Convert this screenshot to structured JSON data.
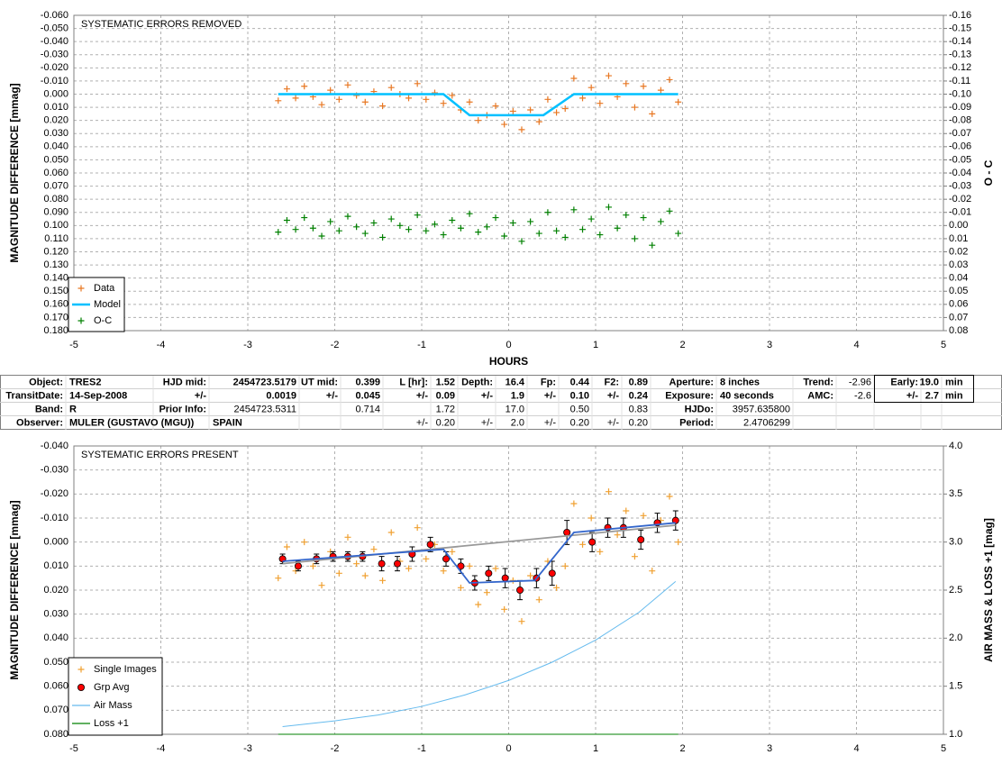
{
  "chart_data": [
    {
      "type": "scatter",
      "annotation": "SYSTEMATIC ERRORS REMOVED",
      "xlabel": "HOURS",
      "ylabel": "MAGNITUDE DIFFERENCE [mmag]",
      "y2label": "O - C",
      "xlim": [
        -5,
        5
      ],
      "xticks": [
        -5,
        -4,
        -3,
        -2,
        -1,
        0,
        1,
        2,
        3,
        4,
        5
      ],
      "ylim": [
        -0.06,
        0.18
      ],
      "y_reversed": true,
      "yticks": [
        {
          "value": -0.06,
          "label": "-0.060"
        },
        {
          "value": -0.05,
          "label": "-0.050"
        },
        {
          "value": -0.04,
          "label": "-0.040"
        },
        {
          "value": -0.03,
          "label": "-0.030"
        },
        {
          "value": -0.02,
          "label": "-0.020"
        },
        {
          "value": -0.01,
          "label": "-0.010"
        },
        {
          "value": 0,
          "label": "0.000"
        },
        {
          "value": 0.01,
          "label": "0.010"
        },
        {
          "value": 0.02,
          "label": "0.020"
        },
        {
          "value": 0.03,
          "label": "0.030"
        },
        {
          "value": 0.04,
          "label": "0.040"
        },
        {
          "value": 0.05,
          "label": "0.050"
        },
        {
          "value": 0.06,
          "label": "0.060"
        },
        {
          "value": 0.07,
          "label": "0.070"
        },
        {
          "value": 0.08,
          "label": "0.080"
        },
        {
          "value": 0.09,
          "label": "0.090"
        },
        {
          "value": 0.1,
          "label": "0.100"
        },
        {
          "value": 0.11,
          "label": "0.110"
        },
        {
          "value": 0.12,
          "label": "0.120"
        },
        {
          "value": 0.13,
          "label": "0.130"
        },
        {
          "value": 0.14,
          "label": "0.140"
        },
        {
          "value": 0.15,
          "label": "0.150"
        },
        {
          "value": 0.16,
          "label": "0.160"
        },
        {
          "value": 0.17,
          "label": "0.170"
        },
        {
          "value": 0.18,
          "label": "0.180"
        }
      ],
      "y2lim": [
        -0.16,
        0.08
      ],
      "y2_reversed": true,
      "y2ticks": [
        -0.16,
        -0.15,
        -0.14,
        -0.13,
        -0.12,
        -0.11,
        {
          "value": -0.1,
          "label": "-0.10"
        },
        -0.09,
        -0.08,
        -0.07,
        -0.06,
        -0.05,
        -0.04,
        -0.03,
        -0.02,
        -0.01,
        {
          "value": 0,
          "label": "0.00"
        },
        0.01,
        0.02,
        0.03,
        0.04,
        0.05,
        0.06,
        0.07,
        0.08
      ],
      "grid": true,
      "legend": "lower left",
      "x": [
        -2.65,
        -2.55,
        -2.45,
        -2.35,
        -2.25,
        -2.15,
        -2.05,
        -1.95,
        -1.85,
        -1.75,
        -1.65,
        -1.55,
        -1.45,
        -1.35,
        -1.25,
        -1.15,
        -1.05,
        -0.95,
        -0.85,
        -0.75,
        -0.65,
        -0.55,
        -0.45,
        -0.35,
        -0.25,
        -0.15,
        -0.05,
        0.05,
        0.15,
        0.25,
        0.35,
        0.45,
        0.55,
        0.65,
        0.75,
        0.85,
        0.95,
        1.05,
        1.15,
        1.25,
        1.35,
        1.45,
        1.55,
        1.65,
        1.75,
        1.85,
        1.95
      ],
      "series": [
        {
          "name": "Data",
          "type": "scatter",
          "marker": "plus",
          "color": "#e87722",
          "values": [
            0.005,
            -0.004,
            0.003,
            -0.006,
            0.002,
            0.008,
            -0.003,
            0.004,
            -0.007,
            0.001,
            0.006,
            -0.002,
            0.009,
            -0.005,
            0.0,
            0.003,
            -0.008,
            0.004,
            -0.001,
            0.007,
            0.001,
            0.012,
            0.006,
            0.02,
            0.016,
            0.009,
            0.023,
            0.013,
            0.027,
            0.012,
            0.021,
            0.004,
            0.014,
            0.011,
            -0.012,
            0.003,
            -0.005,
            0.007,
            -0.014,
            0.002,
            -0.008,
            0.01,
            -0.006,
            0.015,
            -0.003,
            -0.011,
            0.006
          ]
        },
        {
          "name": "Model",
          "type": "line",
          "color": "#00c0ff",
          "x": [
            -2.65,
            -0.75,
            -0.45,
            0.4,
            0.75,
            1.95
          ],
          "values": [
            0,
            0,
            0.016,
            0.016,
            0,
            0
          ]
        },
        {
          "name": "O-C",
          "type": "scatter",
          "marker": "plus",
          "color": "#008000",
          "axis": "y2",
          "values": [
            0.005,
            -0.004,
            0.003,
            -0.006,
            0.002,
            0.008,
            -0.003,
            0.004,
            -0.007,
            0.001,
            0.006,
            -0.002,
            0.009,
            -0.005,
            0.0,
            0.003,
            -0.008,
            0.004,
            -0.001,
            0.007,
            -0.004,
            0.002,
            -0.009,
            0.005,
            0.001,
            -0.006,
            0.008,
            -0.002,
            0.012,
            -0.003,
            0.006,
            -0.01,
            0.004,
            0.009,
            -0.012,
            0.003,
            -0.005,
            0.007,
            -0.014,
            0.002,
            -0.008,
            0.01,
            -0.006,
            0.015,
            -0.003,
            -0.011,
            0.006
          ]
        }
      ]
    },
    {
      "type": "scatter",
      "annotation": "SYSTEMATIC ERRORS PRESENT",
      "ylabel": "MAGNITUDE DIFFERENCE [mmag]",
      "y2label": "AIR MASS & LOSS +1 [mag]",
      "xlim": [
        -5,
        5
      ],
      "xticks": [
        -5,
        -4,
        -3,
        -2,
        -1,
        0,
        1,
        2,
        3,
        4,
        5
      ],
      "ylim": [
        -0.04,
        0.08
      ],
      "y_reversed": true,
      "yticks": [
        {
          "value": -0.04,
          "label": "-0.040"
        },
        {
          "value": -0.03,
          "label": "-0.030"
        },
        {
          "value": -0.02,
          "label": "-0.020"
        },
        {
          "value": -0.01,
          "label": "-0.010"
        },
        {
          "value": 0,
          "label": "0.000"
        },
        {
          "value": 0.01,
          "label": "0.010"
        },
        {
          "value": 0.02,
          "label": "0.020"
        },
        {
          "value": 0.03,
          "label": "0.030"
        },
        {
          "value": 0.04,
          "label": "0.040"
        },
        {
          "value": 0.05,
          "label": "0.050"
        },
        {
          "value": 0.06,
          "label": "0.060"
        },
        {
          "value": 0.07,
          "label": "0.070"
        },
        {
          "value": 0.08,
          "label": "0.080"
        }
      ],
      "y2lim": [
        1,
        4
      ],
      "y2ticks": [
        {
          "value": 1,
          "label": "1.0"
        },
        1.5,
        {
          "value": 2,
          "label": "2.0"
        },
        2.5,
        {
          "value": 3,
          "label": "3.0"
        },
        3.5,
        {
          "value": 4,
          "label": "4.0"
        }
      ],
      "grid": true,
      "legend": "lower left",
      "x": [
        -2.65,
        -2.55,
        -2.45,
        -2.35,
        -2.25,
        -2.15,
        -2.05,
        -1.95,
        -1.85,
        -1.75,
        -1.65,
        -1.55,
        -1.45,
        -1.35,
        -1.25,
        -1.15,
        -1.05,
        -0.95,
        -0.85,
        -0.75,
        -0.65,
        -0.55,
        -0.45,
        -0.35,
        -0.25,
        -0.15,
        -0.05,
        0.05,
        0.15,
        0.25,
        0.35,
        0.45,
        0.55,
        0.65,
        0.75,
        0.85,
        0.95,
        1.05,
        1.15,
        1.25,
        1.35,
        1.45,
        1.55,
        1.65,
        1.75,
        1.85,
        1.95
      ],
      "series": [
        {
          "name": "Single Images",
          "type": "scatter",
          "marker": "plus",
          "color": "#f0a030",
          "values": [
            0.015,
            0.002,
            0.012,
            0.0,
            0.01,
            0.018,
            0.004,
            0.013,
            -0.002,
            0.009,
            0.014,
            0.003,
            0.016,
            -0.004,
            0.008,
            0.011,
            -0.006,
            0.007,
            0.001,
            0.012,
            0.004,
            0.019,
            0.01,
            0.026,
            0.021,
            0.011,
            0.028,
            0.016,
            0.033,
            0.014,
            0.024,
            0.008,
            0.019,
            0.01,
            -0.016,
            0.001,
            -0.01,
            0.004,
            -0.021,
            -0.003,
            -0.013,
            0.006,
            -0.011,
            0.012,
            -0.009,
            -0.019,
            0.0
          ]
        },
        {
          "name": "Grp Avg",
          "type": "scatter",
          "marker": "circle",
          "color": "#ff0000",
          "x": [
            -2.6,
            -2.42,
            -2.21,
            -2.02,
            -1.85,
            -1.68,
            -1.46,
            -1.28,
            -1.11,
            -0.9,
            -0.72,
            -0.55,
            -0.39,
            -0.23,
            -0.04,
            0.13,
            0.32,
            0.5,
            0.67,
            0.96,
            1.14,
            1.32,
            1.52,
            1.71,
            1.92
          ],
          "values": [
            0.007,
            0.01,
            0.007,
            0.006,
            0.006,
            0.006,
            0.009,
            0.009,
            0.005,
            0.001,
            0.007,
            0.01,
            0.017,
            0.013,
            0.015,
            0.02,
            0.015,
            0.013,
            -0.004,
            0.0,
            -0.006,
            -0.006,
            -0.001,
            -0.008,
            -0.009
          ],
          "errors": [
            0.002,
            0.002,
            0.002,
            0.002,
            0.002,
            0.002,
            0.003,
            0.003,
            0.003,
            0.003,
            0.003,
            0.003,
            0.003,
            0.003,
            0.004,
            0.004,
            0.004,
            0.005,
            0.005,
            0.004,
            0.004,
            0.004,
            0.004,
            0.004,
            0.004
          ]
        },
        {
          "name": "Air Mass",
          "type": "line",
          "color": "#66bbee",
          "axis": "y2",
          "x": [
            -2.6,
            -2,
            -1.5,
            -1,
            -0.5,
            0,
            0.5,
            1,
            1.5,
            1.92
          ],
          "values": [
            1.08,
            1.14,
            1.2,
            1.29,
            1.41,
            1.56,
            1.75,
            1.98,
            2.27,
            2.59
          ]
        },
        {
          "name": "Loss +1",
          "type": "line",
          "color": "#008000",
          "axis": "y2",
          "x": [
            -2.65,
            1.95
          ],
          "values": [
            1.0,
            1.0
          ]
        },
        {
          "type": "line",
          "color": "#999999",
          "x": [
            -2.6,
            1.92
          ],
          "values": [
            0.009,
            -0.007
          ]
        },
        {
          "type": "line",
          "color": "#3366cc",
          "x": [
            -2.6,
            -0.75,
            -0.45,
            0.3,
            0.75,
            1.92
          ],
          "values": [
            0.008,
            0.003,
            0.017,
            0.016,
            -0.004,
            -0.008
          ]
        }
      ]
    }
  ],
  "table": {
    "rows": [
      [
        "Object:",
        "TRES2",
        "HJD mid:",
        "2454723.5179",
        "UT mid:",
        "0.399",
        "L [hr]:",
        "1.52",
        "Depth:",
        "16.4",
        "Fp:",
        "0.44",
        "F2:",
        "0.89",
        "Aperture:",
        "8 inches",
        "Trend:",
        "-2.96",
        "Early:",
        "19.0",
        "min"
      ],
      [
        "TransitDate:",
        "14-Sep-2008",
        "+/-",
        "0.0019",
        "+/-",
        "0.045",
        "+/-",
        "0.09",
        "+/-",
        "1.9",
        "+/-",
        "0.10",
        "+/-",
        "0.24",
        "Exposure:",
        "40 seconds",
        "AMC:",
        "-2.6",
        "+/-",
        "2.7",
        "min"
      ],
      [
        "Band:",
        "R",
        "Prior Info:",
        "2454723.5311",
        null,
        "0.714",
        null,
        "1.72",
        null,
        "17.0",
        null,
        "0.50",
        null,
        "0.83",
        "HJDo:",
        "3957.635800",
        null,
        null,
        null,
        null,
        null
      ],
      [
        "Observer:",
        "MULER (GUSTAVO (MGU))",
        null,
        "SPAIN",
        null,
        null,
        "+/-",
        "0.20",
        "+/-",
        "2.0",
        "+/-",
        "0.20",
        "+/-",
        "0.20",
        "Period:",
        "2.4706299",
        null,
        null,
        null,
        null,
        null
      ]
    ]
  }
}
